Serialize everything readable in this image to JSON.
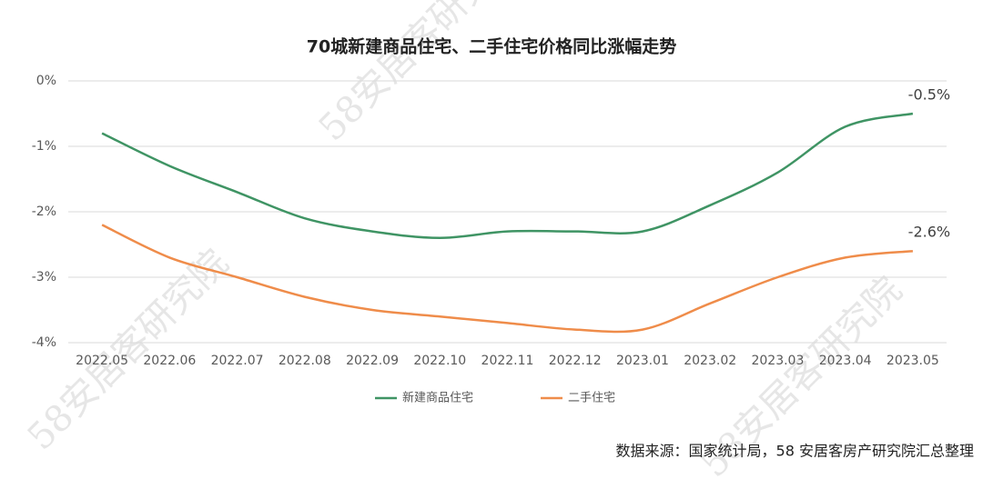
{
  "chart_data": {
    "type": "line",
    "title": "70城新建商品住宅、二手住宅价格同比涨幅走势",
    "categories": [
      "2022.05",
      "2022.06",
      "2022.07",
      "2022.08",
      "2022.09",
      "2022.10",
      "2022.11",
      "2022.12",
      "2023.01",
      "2023.02",
      "2023.03",
      "2023.04",
      "2023.05"
    ],
    "series": [
      {
        "name": "新建商品住宅",
        "color": "#3f9464",
        "values": [
          -0.8,
          -1.3,
          -1.7,
          -2.1,
          -2.3,
          -2.4,
          -2.3,
          -2.3,
          -2.3,
          -1.9,
          -1.4,
          -0.7,
          -0.5
        ],
        "value_labels": [
          null,
          null,
          null,
          null,
          null,
          null,
          null,
          null,
          null,
          null,
          null,
          null,
          "-0.5%"
        ]
      },
      {
        "name": "二手住宅",
        "color": "#ef8c4a",
        "values": [
          -2.2,
          -2.7,
          -3.0,
          -3.3,
          -3.5,
          -3.6,
          -3.7,
          -3.8,
          -3.8,
          -3.4,
          -3.0,
          -2.7,
          -2.6
        ],
        "value_labels": [
          null,
          null,
          null,
          null,
          null,
          null,
          null,
          null,
          null,
          null,
          null,
          null,
          "-2.6%"
        ]
      }
    ],
    "ylim": [
      -4,
      0
    ],
    "yticks": [
      {
        "value": 0,
        "label": "0%"
      },
      {
        "value": -1,
        "label": "-1%"
      },
      {
        "value": -2,
        "label": "-2%"
      },
      {
        "value": -3,
        "label": "-3%"
      },
      {
        "value": -4,
        "label": "-4%"
      }
    ],
    "grid": true,
    "legend": "bottom",
    "source": "数据来源：国家统计局，58 安居客房产研究院汇总整理",
    "watermark": "58安居客研究院"
  }
}
